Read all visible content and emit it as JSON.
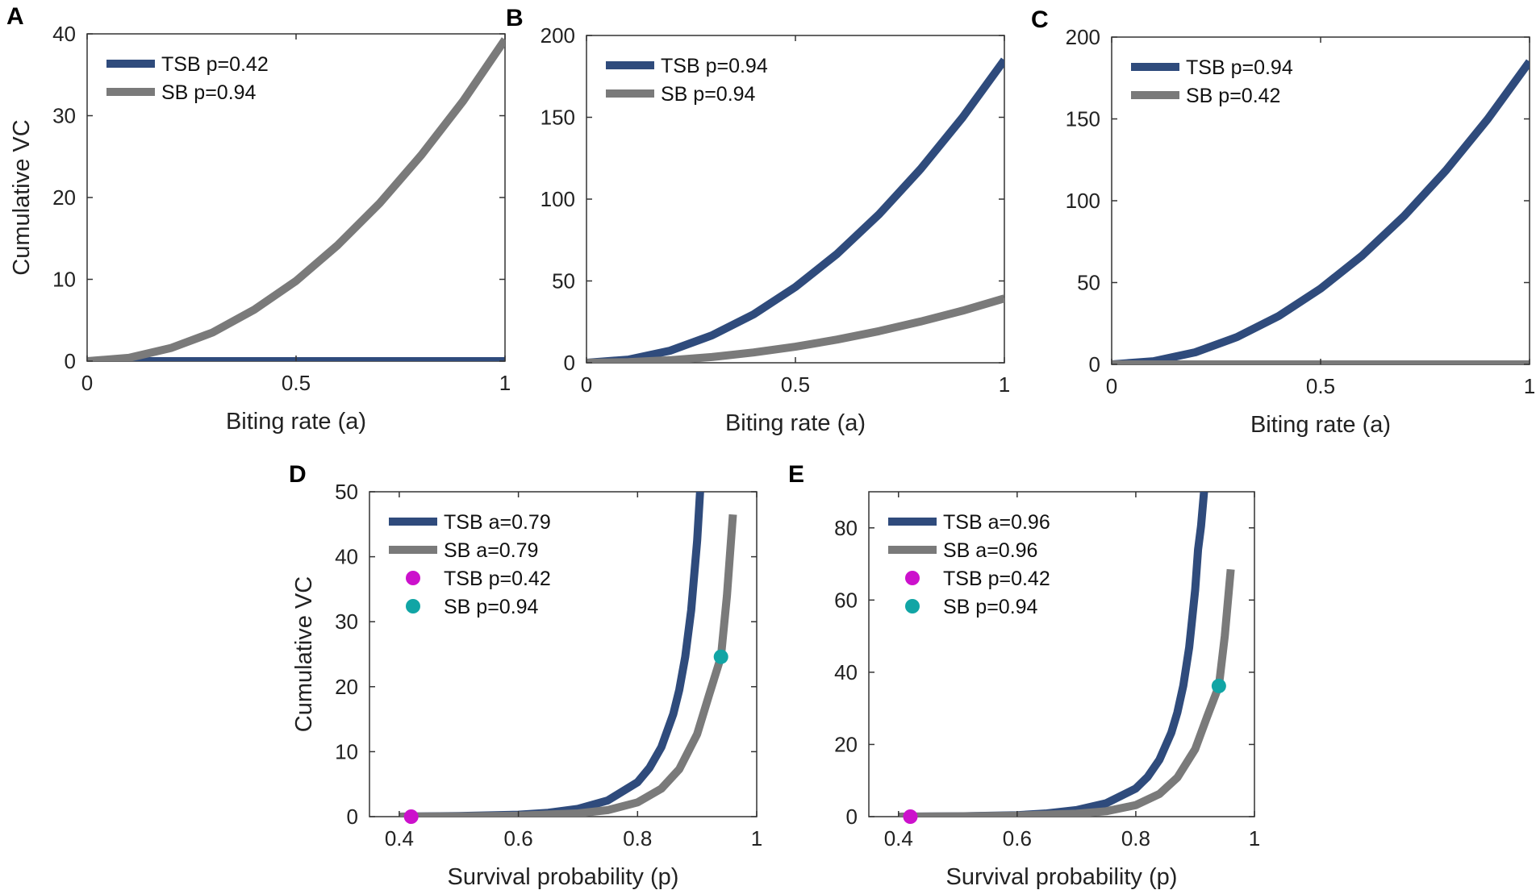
{
  "colors": {
    "tsb": "#2f4b7c",
    "sb": "#7a7a7a",
    "magenta": "#cc11cc",
    "teal": "#11a5a5",
    "axis": "#333333"
  },
  "chart_data": [
    {
      "panel": "A",
      "type": "line",
      "xlabel": "Biting rate (a)",
      "ylabel": "Cumulative VC",
      "xlim": [
        0,
        1
      ],
      "ylim": [
        0,
        40
      ],
      "xticks": [
        0,
        0.5,
        1
      ],
      "xtick_labels": [
        "0",
        "0.5",
        "1"
      ],
      "yticks": [
        0,
        10,
        20,
        30,
        40
      ],
      "ytick_labels": [
        "0",
        "10",
        "20",
        "30",
        "40"
      ],
      "series": [
        {
          "name": "TSB p=0.42",
          "color": "tsb",
          "x": [
            0,
            0.25,
            0.5,
            0.75,
            1
          ],
          "y": [
            0,
            0,
            0,
            0,
            0
          ]
        },
        {
          "name": "SB p=0.94",
          "color": "sb",
          "x": [
            0,
            0.1,
            0.2,
            0.3,
            0.4,
            0.5,
            0.6,
            0.7,
            0.8,
            0.9,
            1
          ],
          "y": [
            0,
            0.4,
            1.6,
            3.5,
            6.3,
            9.8,
            14.2,
            19.3,
            25.2,
            31.8,
            39.3
          ]
        }
      ],
      "legend": [
        "TSB p=0.42",
        "SB p=0.94"
      ],
      "legend_position": "top-left"
    },
    {
      "panel": "B",
      "type": "line",
      "xlabel": "Biting rate (a)",
      "ylabel": "",
      "xlim": [
        0,
        1
      ],
      "ylim": [
        0,
        200
      ],
      "xticks": [
        0,
        0.5,
        1
      ],
      "xtick_labels": [
        "0",
        "0.5",
        "1"
      ],
      "yticks": [
        0,
        50,
        100,
        150,
        200
      ],
      "ytick_labels": [
        "0",
        "50",
        "100",
        "150",
        "200"
      ],
      "series": [
        {
          "name": "TSB p=0.94",
          "color": "tsb",
          "x": [
            0,
            0.1,
            0.2,
            0.3,
            0.4,
            0.5,
            0.6,
            0.7,
            0.8,
            0.9,
            1
          ],
          "y": [
            0,
            1.9,
            7.4,
            16.7,
            29.6,
            46.3,
            66.6,
            90.7,
            118.5,
            149.9,
            185
          ]
        },
        {
          "name": "SB p=0.94",
          "color": "sb",
          "x": [
            0,
            0.1,
            0.2,
            0.3,
            0.4,
            0.5,
            0.6,
            0.7,
            0.8,
            0.9,
            1
          ],
          "y": [
            0,
            0.4,
            1.6,
            3.5,
            6.3,
            9.8,
            14.2,
            19.3,
            25.2,
            31.8,
            39.3
          ]
        }
      ],
      "legend": [
        "TSB p=0.94",
        "SB p=0.94"
      ],
      "legend_position": "top-left"
    },
    {
      "panel": "C",
      "type": "line",
      "xlabel": "Biting rate (a)",
      "ylabel": "",
      "xlim": [
        0,
        1
      ],
      "ylim": [
        0,
        200
      ],
      "xticks": [
        0,
        0.5,
        1
      ],
      "xtick_labels": [
        "0",
        "0.5",
        "1"
      ],
      "yticks": [
        0,
        50,
        100,
        150,
        200
      ],
      "ytick_labels": [
        "0",
        "50",
        "100",
        "150",
        "200"
      ],
      "series": [
        {
          "name": "TSB p=0.94",
          "color": "tsb",
          "x": [
            0,
            0.1,
            0.2,
            0.3,
            0.4,
            0.5,
            0.6,
            0.7,
            0.8,
            0.9,
            1
          ],
          "y": [
            0,
            1.9,
            7.4,
            16.7,
            29.6,
            46.3,
            66.6,
            90.7,
            118.5,
            149.9,
            185
          ]
        },
        {
          "name": "SB p=0.42",
          "color": "sb",
          "x": [
            0,
            0.25,
            0.5,
            0.75,
            1
          ],
          "y": [
            0,
            0,
            0,
            0,
            0
          ]
        }
      ],
      "legend": [
        "TSB p=0.94",
        "SB p=0.42"
      ],
      "legend_position": "top-left"
    },
    {
      "panel": "D",
      "type": "line",
      "xlabel": "Survival probability (p)",
      "ylabel": "Cumulative VC",
      "xlim": [
        0.35,
        1
      ],
      "ylim": [
        0,
        50
      ],
      "xticks": [
        0.4,
        0.6,
        0.8,
        1
      ],
      "xtick_labels": [
        "0.4",
        "0.6",
        "0.8",
        "1"
      ],
      "yticks": [
        0,
        10,
        20,
        30,
        40,
        50
      ],
      "ytick_labels": [
        "0",
        "10",
        "20",
        "30",
        "40",
        "50"
      ],
      "series": [
        {
          "name": "TSB a=0.79",
          "color": "tsb",
          "x": [
            0.4,
            0.5,
            0.6,
            0.65,
            0.7,
            0.75,
            0.8,
            0.82,
            0.84,
            0.86,
            0.87,
            0.88,
            0.89,
            0.9,
            0.905
          ],
          "y": [
            0,
            0.1,
            0.3,
            0.6,
            1.2,
            2.5,
            5.3,
            7.5,
            10.7,
            15.8,
            19.5,
            24.6,
            31.8,
            42.5,
            50
          ]
        },
        {
          "name": "SB a=0.79",
          "color": "sb",
          "x": [
            0.4,
            0.5,
            0.6,
            0.7,
            0.75,
            0.8,
            0.84,
            0.87,
            0.9,
            0.92,
            0.94,
            0.95,
            0.96
          ],
          "y": [
            0,
            0.05,
            0.15,
            0.5,
            1.0,
            2.2,
            4.3,
            7.3,
            12.7,
            18.7,
            24.6,
            34,
            46.5
          ]
        }
      ],
      "points": [
        {
          "name": "TSB p=0.42",
          "color": "magenta",
          "x": 0.42,
          "y": 0
        },
        {
          "name": "SB p=0.94",
          "color": "teal",
          "x": 0.94,
          "y": 24.6
        }
      ],
      "legend": [
        "TSB a=0.79",
        "SB a=0.79",
        "TSB p=0.42",
        "SB p=0.94"
      ],
      "legend_position": "top-left"
    },
    {
      "panel": "E",
      "type": "line",
      "xlabel": "Survival probability (p)",
      "ylabel": "",
      "xlim": [
        0.35,
        1
      ],
      "ylim": [
        0,
        90
      ],
      "xticks": [
        0.4,
        0.6,
        0.8,
        1
      ],
      "xtick_labels": [
        "0.4",
        "0.6",
        "0.8",
        "1"
      ],
      "yticks": [
        0,
        20,
        40,
        60,
        80
      ],
      "ytick_labels": [
        "0",
        "20",
        "40",
        "60",
        "80"
      ],
      "series": [
        {
          "name": "TSB a=0.96",
          "color": "tsb",
          "x": [
            0.4,
            0.5,
            0.6,
            0.65,
            0.7,
            0.75,
            0.8,
            0.82,
            0.84,
            0.86,
            0.87,
            0.88,
            0.89,
            0.9,
            0.905,
            0.91,
            0.915
          ],
          "y": [
            0,
            0.1,
            0.4,
            0.9,
            1.8,
            3.7,
            7.8,
            11,
            15.8,
            23.3,
            28.8,
            36.3,
            46.9,
            62.8,
            74,
            80.5,
            90
          ]
        },
        {
          "name": "SB a=0.96",
          "color": "sb",
          "x": [
            0.4,
            0.5,
            0.6,
            0.7,
            0.75,
            0.8,
            0.84,
            0.87,
            0.9,
            0.92,
            0.94,
            0.95,
            0.96
          ],
          "y": [
            0,
            0.1,
            0.3,
            0.8,
            1.5,
            3.2,
            6.3,
            10.8,
            18.7,
            27.6,
            36.2,
            50,
            68.5
          ]
        }
      ],
      "points": [
        {
          "name": "TSB p=0.42",
          "color": "magenta",
          "x": 0.42,
          "y": 0
        },
        {
          "name": "SB p=0.94",
          "color": "teal",
          "x": 0.94,
          "y": 36.2
        }
      ],
      "legend": [
        "TSB a=0.96",
        "SB a=0.96",
        "TSB p=0.42",
        "SB p=0.94"
      ],
      "legend_position": "top-left"
    }
  ]
}
